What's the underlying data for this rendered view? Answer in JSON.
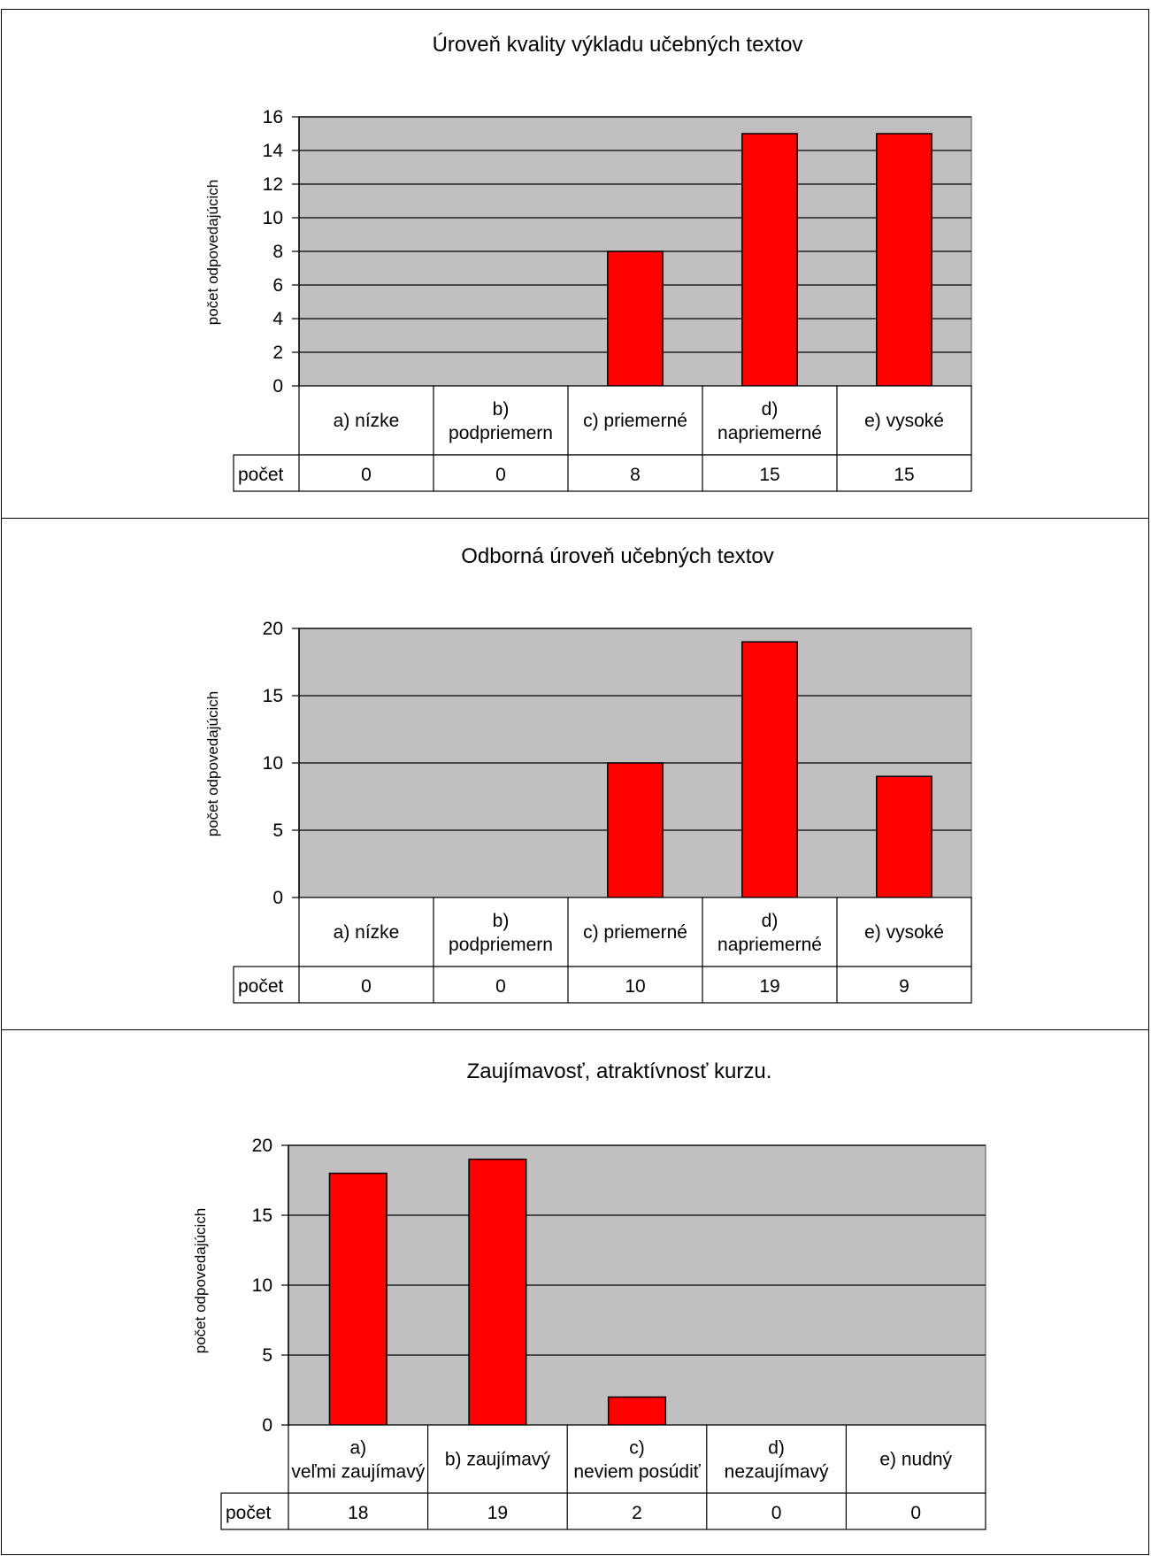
{
  "chart_data": [
    {
      "type": "bar",
      "title": "Úroveň kvality výkladu učebných textov",
      "ylabel": "počet odpovedajúcich",
      "xlabel": "",
      "ylim": [
        0,
        16
      ],
      "yticks": [
        0,
        2,
        4,
        6,
        8,
        10,
        12,
        14,
        16
      ],
      "categories": [
        "a) nízke",
        "b) podpriemern",
        "c) priemerné",
        "d) napriemerné",
        "e) vysoké"
      ],
      "series": [
        {
          "name": "počet",
          "values": [
            0,
            0,
            8,
            15,
            15
          ],
          "color": "#ff0000"
        }
      ],
      "table_row_label": "počet",
      "grid": true,
      "plot_background": "#c0c0c0",
      "legend": "none"
    },
    {
      "type": "bar",
      "title": "Odborná úroveň učebných textov",
      "ylabel": "počet odpovedajúcich",
      "xlabel": "",
      "ylim": [
        0,
        20
      ],
      "yticks": [
        0,
        5,
        10,
        15,
        20
      ],
      "categories": [
        "a) nízke",
        "b) podpriemern",
        "c) priemerné",
        "d) napriemerné",
        "e) vysoké"
      ],
      "series": [
        {
          "name": "počet",
          "values": [
            0,
            0,
            10,
            19,
            9
          ],
          "color": "#ff0000"
        }
      ],
      "table_row_label": "počet",
      "grid": true,
      "plot_background": "#c0c0c0",
      "legend": "none"
    },
    {
      "type": "bar",
      "title": "Zaujímavosť, atraktívnosť kurzu.",
      "ylabel": "počet odpovedajúcich",
      "xlabel": "",
      "ylim": [
        0,
        20
      ],
      "yticks": [
        0,
        5,
        10,
        15,
        20
      ],
      "categories": [
        "a) veľmi zaujímavý",
        "b) zaujímavý",
        "c) neviem posúdiť",
        "d) nezaujímavý",
        "e) nudný"
      ],
      "series": [
        {
          "name": "počet",
          "values": [
            18,
            19,
            2,
            0,
            0
          ],
          "color": "#ff0000"
        }
      ],
      "table_row_label": "počet",
      "grid": true,
      "plot_background": "#c0c0c0",
      "legend": "none"
    }
  ]
}
